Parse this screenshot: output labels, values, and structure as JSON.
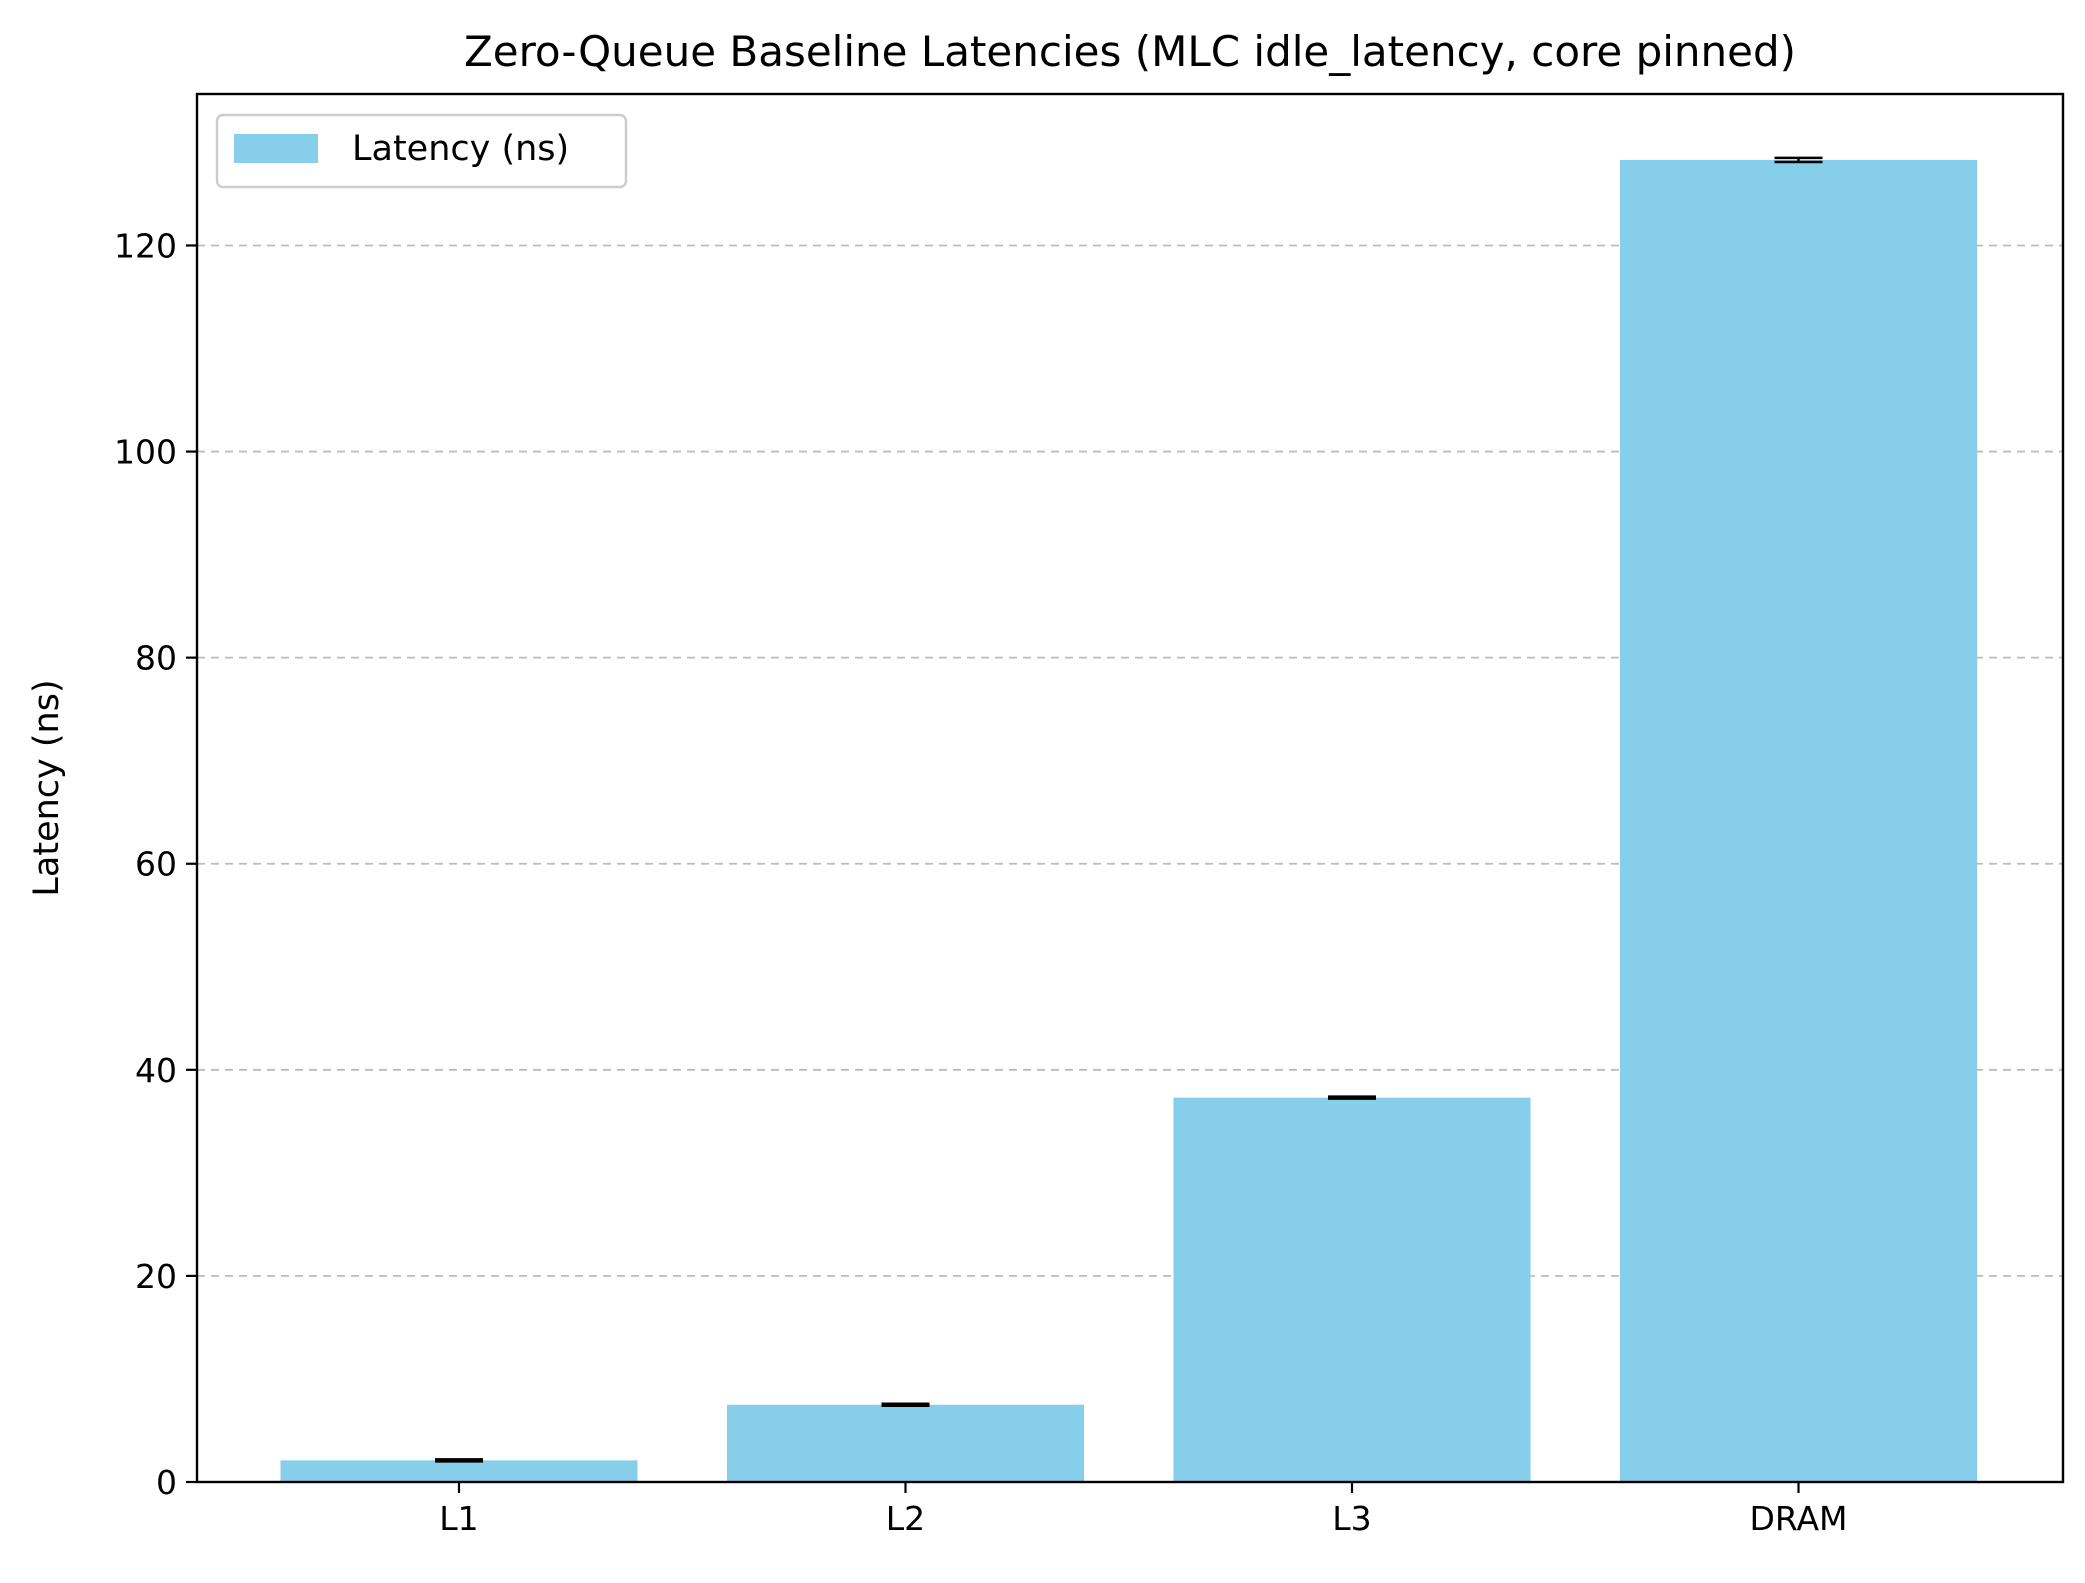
{
  "chart_data": {
    "type": "bar",
    "title": "Zero-Queue Baseline Latencies (MLC idle_latency, core pinned)",
    "xlabel": "",
    "ylabel": "Latency (ns)",
    "categories": [
      "L1",
      "L2",
      "L3",
      "DRAM"
    ],
    "series": [
      {
        "name": "Latency (ns)",
        "values": [
          2.1,
          7.5,
          37.3,
          128.3
        ],
        "error": [
          0.1,
          0.1,
          0.1,
          0.2
        ],
        "color": "#87CEEB"
      }
    ],
    "ylim": [
      0,
      134.7
    ],
    "yticks": [
      0,
      20,
      40,
      60,
      80,
      100,
      120
    ],
    "grid": "y, dashed",
    "legend_position": "top-left"
  }
}
